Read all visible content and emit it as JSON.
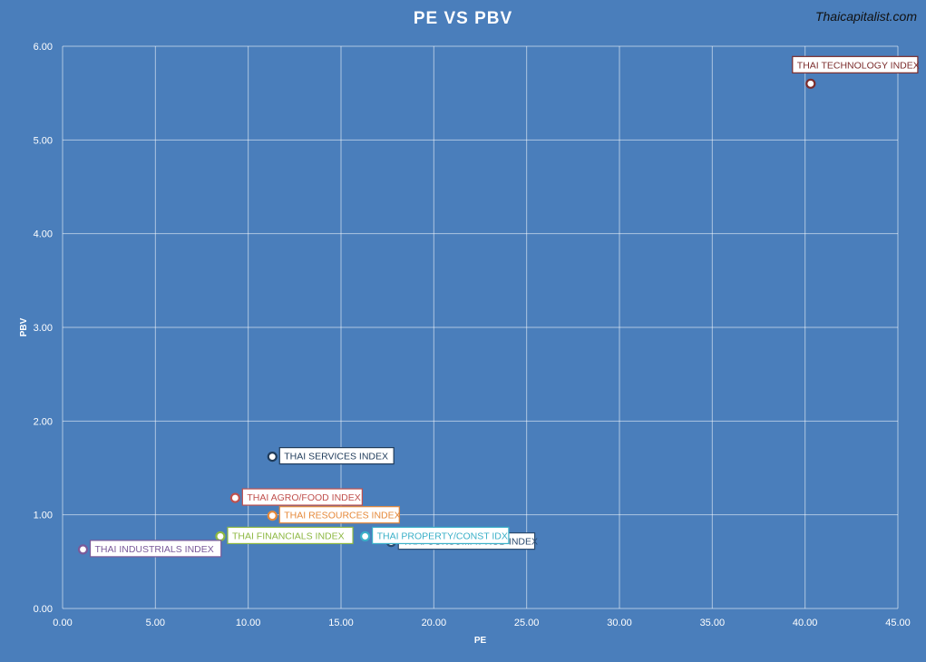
{
  "title": "PE VS PBV",
  "brand": "Thaicapitalist.com",
  "chart_data": {
    "type": "scatter",
    "title": "PE VS PBV",
    "xlabel": "PE",
    "ylabel": "PBV",
    "xlim": [
      0,
      45
    ],
    "ylim": [
      0,
      6
    ],
    "x_ticks": [
      "0.00",
      "5.00",
      "10.00",
      "15.00",
      "20.00",
      "25.00",
      "30.00",
      "35.00",
      "40.00",
      "45.00"
    ],
    "y_ticks": [
      "0.00",
      "1.00",
      "2.00",
      "3.00",
      "4.00",
      "5.00",
      "6.00"
    ],
    "grid": true,
    "points": [
      {
        "label": "THAI TECHNOLOGY INDEX",
        "x": 40.3,
        "y": 5.6,
        "color": "#7b2c2c",
        "side": "right"
      },
      {
        "label": "THAI SERVICES INDEX",
        "x": 11.3,
        "y": 1.62,
        "color": "#1f3b5a",
        "side": "right"
      },
      {
        "label": "THAI AGRO/FOOD INDEX",
        "x": 9.3,
        "y": 1.18,
        "color": "#c0504d",
        "side": "right"
      },
      {
        "label": "THAI RESOURCES INDEX",
        "x": 11.3,
        "y": 0.99,
        "color": "#e6893a",
        "side": "right"
      },
      {
        "label": "THAI FINANCIALS INDEX",
        "x": 8.5,
        "y": 0.77,
        "color": "#8db842",
        "side": "right"
      },
      {
        "label": "THAI INDUSTRIALS INDEX",
        "x": 1.1,
        "y": 0.63,
        "color": "#7a5a9a",
        "side": "right"
      },
      {
        "label": "THAI CONSUMP/PROD INDEX",
        "x": 17.7,
        "y": 0.71,
        "color": "#2a4a6e",
        "side": "right"
      },
      {
        "label": "THAI PROPERTY/CONST IDX",
        "x": 16.3,
        "y": 0.77,
        "color": "#3ab0c8",
        "side": "right"
      }
    ]
  }
}
